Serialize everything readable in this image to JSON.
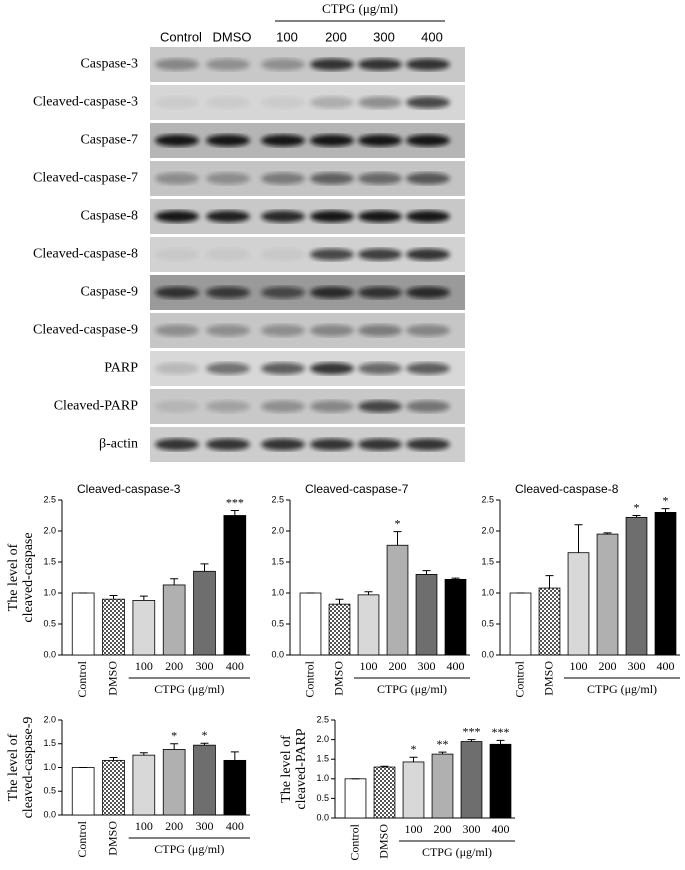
{
  "blot": {
    "group_label": "CTPG (μg/ml)",
    "lanes": [
      "Control",
      "DMSO",
      "100",
      "200",
      "300",
      "400"
    ],
    "rows": [
      "Caspase-3",
      "Cleaved-caspase-3",
      "Caspase-7",
      "Cleaved-caspase-7",
      "Caspase-8",
      "Cleaved-caspase-8",
      "Caspase-9",
      "Cleaved-caspase-9",
      "PARP",
      "Cleaved-PARP",
      "β-actin"
    ]
  },
  "chart_data": [
    {
      "type": "bar",
      "title": "Cleaved-caspase-3",
      "ylabel": [
        "The level of",
        "cleaved-caspase"
      ],
      "categories": [
        "Control",
        "DMSO",
        "100",
        "200",
        "300",
        "400"
      ],
      "group_label": "CTPG (μg/ml)",
      "values": [
        1.0,
        0.9,
        0.88,
        1.13,
        1.35,
        2.25
      ],
      "errors": [
        0,
        0.06,
        0.07,
        0.1,
        0.12,
        0.08
      ],
      "significance": [
        null,
        null,
        null,
        null,
        null,
        "***"
      ],
      "colors": [
        "#ffffff",
        "#9a9a9a",
        "#d8d8d8",
        "#b0b0b0",
        "#6e6e6e",
        "#000000"
      ],
      "patterned": [
        false,
        true,
        false,
        false,
        false,
        false
      ],
      "ylim": [
        0,
        2.5
      ],
      "yticks": [
        {
          "value": 0,
          "label": "0.0"
        },
        {
          "value": 0.5,
          "label": "0.5"
        },
        {
          "value": 1,
          "label": "1.0"
        },
        {
          "value": 1.5,
          "label": "1.5"
        },
        {
          "value": 2,
          "label": "2.0"
        },
        {
          "value": 2.5,
          "label": "2.5"
        }
      ]
    },
    {
      "type": "bar",
      "title": "Cleaved-caspase-7",
      "categories": [
        "Control",
        "DMSO",
        "100",
        "200",
        "300",
        "400"
      ],
      "group_label": "CTPG (μg/ml)",
      "values": [
        1.0,
        0.82,
        0.97,
        1.77,
        1.3,
        1.22
      ],
      "errors": [
        0,
        0.08,
        0.05,
        0.22,
        0.06,
        0.02
      ],
      "significance": [
        null,
        null,
        null,
        "*",
        null,
        null
      ],
      "colors": [
        "#ffffff",
        "#9a9a9a",
        "#d8d8d8",
        "#b0b0b0",
        "#6e6e6e",
        "#000000"
      ],
      "patterned": [
        false,
        true,
        false,
        false,
        false,
        false
      ],
      "ylim": [
        0,
        2.5
      ],
      "yticks": [
        {
          "value": 0,
          "label": "0.0"
        },
        {
          "value": 0.5,
          "label": "0.5"
        },
        {
          "value": 1,
          "label": "1.0"
        },
        {
          "value": 1.5,
          "label": "1.5"
        },
        {
          "value": 2,
          "label": "2.0"
        },
        {
          "value": 2.5,
          "label": "2.5"
        }
      ]
    },
    {
      "type": "bar",
      "title": "Cleaved-caspase-8",
      "categories": [
        "Control",
        "DMSO",
        "100",
        "200",
        "300",
        "400"
      ],
      "group_label": "CTPG (μg/ml)",
      "values": [
        1.0,
        1.08,
        1.65,
        1.95,
        2.22,
        2.3
      ],
      "errors": [
        0,
        0.2,
        0.45,
        0.02,
        0.03,
        0.06
      ],
      "significance": [
        null,
        null,
        null,
        null,
        "*",
        "*"
      ],
      "colors": [
        "#ffffff",
        "#9a9a9a",
        "#d8d8d8",
        "#b0b0b0",
        "#6e6e6e",
        "#000000"
      ],
      "patterned": [
        false,
        true,
        false,
        false,
        false,
        false
      ],
      "ylim": [
        0,
        2.5
      ],
      "yticks": [
        {
          "value": 0,
          "label": "0.0"
        },
        {
          "value": 0.5,
          "label": "0.5"
        },
        {
          "value": 1,
          "label": "1.0"
        },
        {
          "value": 1.5,
          "label": "1.5"
        },
        {
          "value": 2,
          "label": "2.0"
        },
        {
          "value": 2.5,
          "label": "2.5"
        }
      ]
    },
    {
      "type": "bar",
      "ylabel": [
        "The level of",
        "cleaved-caspase-9"
      ],
      "categories": [
        "Control",
        "DMSO",
        "100",
        "200",
        "300",
        "400"
      ],
      "group_label": "CTPG (μg/ml)",
      "values": [
        1.0,
        1.15,
        1.26,
        1.38,
        1.47,
        1.15
      ],
      "errors": [
        0,
        0.06,
        0.05,
        0.12,
        0.04,
        0.18
      ],
      "significance": [
        null,
        null,
        null,
        "*",
        "*",
        null
      ],
      "colors": [
        "#ffffff",
        "#9a9a9a",
        "#d8d8d8",
        "#b0b0b0",
        "#6e6e6e",
        "#000000"
      ],
      "patterned": [
        false,
        true,
        false,
        false,
        false,
        false
      ],
      "ylim": [
        0,
        2
      ],
      "yticks": [
        {
          "value": 0,
          "label": "0.0"
        },
        {
          "value": 0.5,
          "label": "0.5"
        },
        {
          "value": 1,
          "label": "1.0"
        },
        {
          "value": 1.5,
          "label": "1.5"
        },
        {
          "value": 2,
          "label": "2.0"
        }
      ]
    },
    {
      "type": "bar",
      "ylabel": [
        "The level of",
        "cleaved-PARP"
      ],
      "categories": [
        "Control",
        "DMSO",
        "100",
        "200",
        "300",
        "400"
      ],
      "group_label": "CTPG (μg/ml)",
      "values": [
        1.0,
        1.3,
        1.43,
        1.63,
        1.95,
        1.88
      ],
      "errors": [
        0,
        0.02,
        0.12,
        0.05,
        0.05,
        0.1
      ],
      "significance": [
        null,
        null,
        "*",
        "**",
        "***",
        "***"
      ],
      "colors": [
        "#ffffff",
        "#9a9a9a",
        "#d8d8d8",
        "#b0b0b0",
        "#6e6e6e",
        "#000000"
      ],
      "patterned": [
        false,
        true,
        false,
        false,
        false,
        false
      ],
      "ylim": [
        0,
        2.5
      ],
      "yticks": [
        {
          "value": 0,
          "label": "0.0"
        },
        {
          "value": 0.5,
          "label": "0.5"
        },
        {
          "value": 1,
          "label": "1.0"
        },
        {
          "value": 1.5,
          "label": "1.5"
        },
        {
          "value": 2,
          "label": "2.0"
        },
        {
          "value": 2.5,
          "label": "2.5"
        }
      ]
    }
  ]
}
